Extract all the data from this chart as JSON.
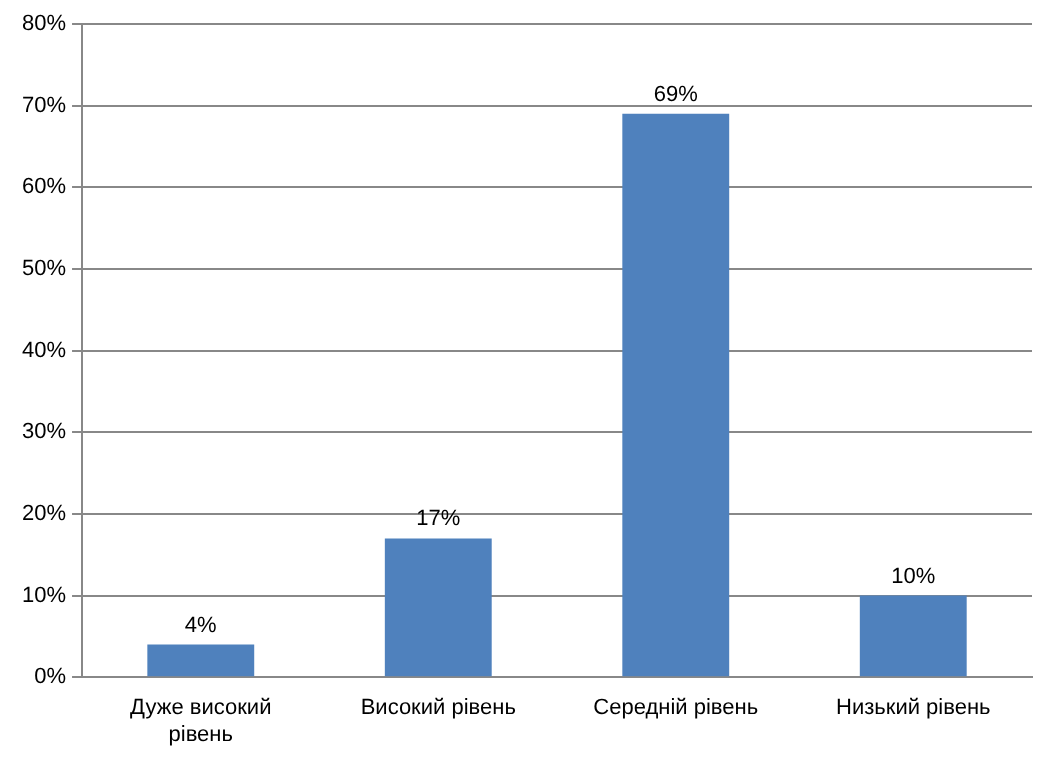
{
  "chart_data": {
    "type": "bar",
    "categories": [
      "Дуже високий рівень",
      "Високий рівень",
      "Середній рівень",
      "Низький рівень"
    ],
    "values": [
      4,
      17,
      69,
      10
    ],
    "value_labels": [
      "4%",
      "17%",
      "69%",
      "10%"
    ],
    "color": "#4f81bd",
    "ylim": [
      0,
      80
    ],
    "yticks": [
      {
        "value": 0,
        "label": "0%"
      },
      {
        "value": 10,
        "label": "10%"
      },
      {
        "value": 20,
        "label": "20%"
      },
      {
        "value": 30,
        "label": "30%"
      },
      {
        "value": 40,
        "label": "40%"
      },
      {
        "value": 50,
        "label": "50%"
      },
      {
        "value": 60,
        "label": "60%"
      },
      {
        "value": 70,
        "label": "70%"
      },
      {
        "value": 80,
        "label": "80%"
      }
    ],
    "grid": "y"
  }
}
